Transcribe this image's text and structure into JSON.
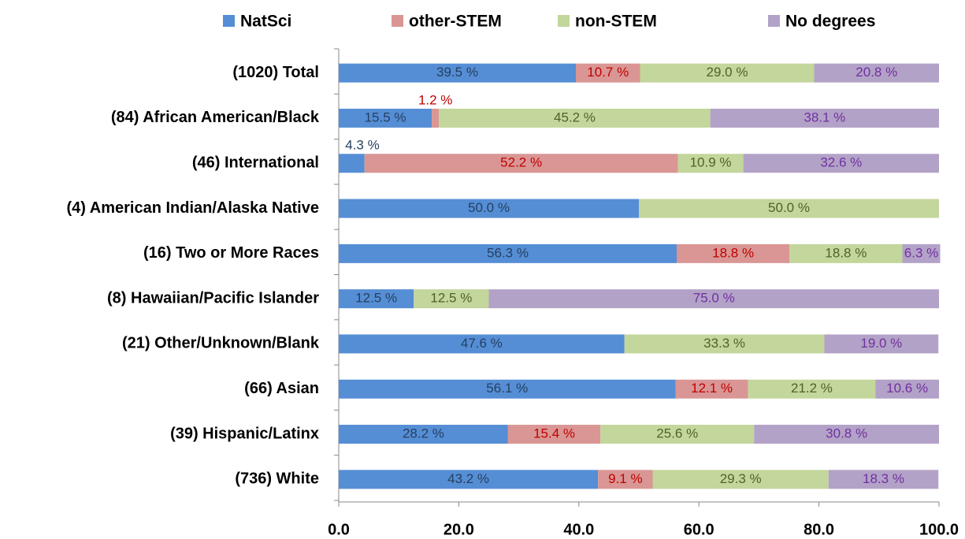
{
  "chart_data": {
    "type": "stacked_barh",
    "categories": [
      "(1020) Total",
      "(84) African American/Black",
      "(46) International",
      "(4) American Indian/Alaska Native",
      "(16) Two or More Races",
      "(8) Hawaiian/Pacific Islander",
      "(21) Other/Unknown/Blank",
      "(66) Asian",
      "(39) Hispanic/Latinx",
      "(736) White"
    ],
    "series": [
      {
        "name": "NatSci",
        "color": "#558ed5",
        "label_color": "#254061",
        "values": [
          39.5,
          15.5,
          4.3,
          50.0,
          56.3,
          12.5,
          47.6,
          56.1,
          28.2,
          43.2
        ],
        "value_labels": [
          "39.5 %",
          "15.5 %",
          "4.3 %",
          "50.0 %",
          "56.3 %",
          "12.5 %",
          "47.6 %",
          "56.1 %",
          "28.2 %",
          "43.2 %"
        ]
      },
      {
        "name": "other-STEM",
        "color": "#d99694",
        "label_color": "#c00000",
        "values": [
          10.7,
          1.2,
          52.2,
          0,
          18.8,
          0,
          0,
          12.1,
          15.4,
          9.1
        ],
        "value_labels": [
          "10.7 %",
          "1.2 %",
          "52.2 %",
          null,
          "18.8 %",
          null,
          null,
          "12.1 %",
          "15.4 %",
          "9.1 %"
        ]
      },
      {
        "name": "non-STEM",
        "color": "#c3d69b",
        "label_color": "#4f6228",
        "values": [
          29.0,
          45.2,
          10.9,
          50.0,
          18.8,
          12.5,
          33.3,
          21.2,
          25.6,
          29.3
        ],
        "value_labels": [
          "29.0 %",
          "45.2 %",
          "10.9 %",
          "50.0 %",
          "18.8 %",
          "12.5 %",
          "33.3 %",
          "21.2 %",
          "25.6 %",
          "29.3 %"
        ]
      },
      {
        "name": "No degrees",
        "color": "#b3a2c7",
        "label_color": "#7030a0",
        "values": [
          20.8,
          38.1,
          32.6,
          0,
          6.3,
          75.0,
          19.0,
          10.6,
          30.8,
          18.3
        ],
        "value_labels": [
          "20.8 %",
          "38.1 %",
          "32.6 %",
          null,
          "6.3 %",
          "75.0 %",
          "19.0 %",
          "10.6 %",
          "30.8 %",
          "18.3 %"
        ]
      }
    ],
    "xlim": [
      0,
      100
    ],
    "xticks": [
      {
        "value": 0,
        "label": "0.0"
      },
      {
        "value": 20,
        "label": "20.0"
      },
      {
        "value": 40,
        "label": "40.0"
      },
      {
        "value": 60,
        "label": "60.0"
      },
      {
        "value": 80,
        "label": "80.0"
      },
      {
        "value": 100,
        "label": "100.0"
      }
    ],
    "legend": "top"
  }
}
